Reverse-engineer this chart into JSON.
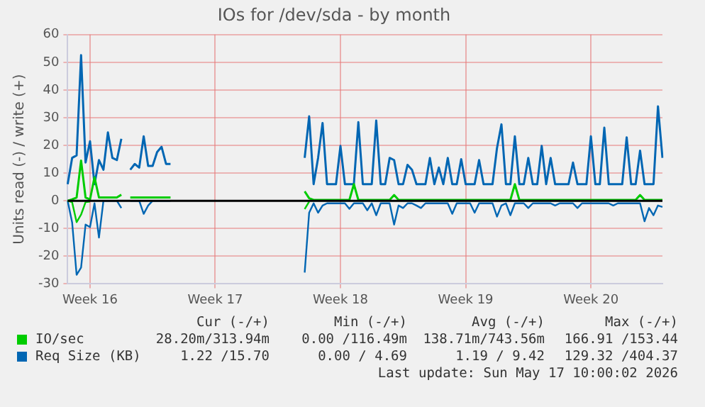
{
  "chart_data": {
    "type": "line",
    "title": "IOs for /dev/sda - by month",
    "ylabel": "Units read (-) / write (+)",
    "categories": [
      null,
      null,
      null,
      null,
      null,
      "Week 16",
      null,
      null,
      null,
      null,
      null,
      null,
      null,
      null,
      null,
      null,
      null,
      null,
      null,
      null,
      null,
      null,
      null,
      null,
      null,
      null,
      null,
      null,
      null,
      null,
      null,
      null,
      null,
      "Week 17",
      null,
      null,
      null,
      null,
      null,
      null,
      null,
      null,
      null,
      null,
      null,
      null,
      null,
      null,
      null,
      null,
      null,
      null,
      null,
      null,
      null,
      null,
      null,
      null,
      null,
      null,
      null,
      "Week 18",
      null,
      null,
      null,
      null,
      null,
      null,
      null,
      null,
      null,
      null,
      null,
      null,
      null,
      null,
      null,
      null,
      null,
      null,
      null,
      null,
      null,
      null,
      null,
      null,
      null,
      null,
      null,
      "Week 19",
      null,
      null,
      null,
      null,
      null,
      null,
      null,
      null,
      null,
      null,
      null,
      null,
      null,
      null,
      null,
      null,
      null,
      null,
      null,
      null,
      null,
      null,
      null,
      null,
      null,
      null,
      null,
      "Week 20",
      null,
      null,
      null,
      null,
      null,
      null,
      null,
      null,
      null,
      null,
      null,
      null,
      null,
      null,
      null,
      null
    ],
    "ylim": [
      -30,
      60
    ],
    "yticks": [
      -30,
      -20,
      -10,
      0,
      10,
      20,
      30,
      40,
      50,
      60
    ],
    "grid": true,
    "legend": "bottom",
    "marker": "none",
    "line_style": "solid",
    "ref_lines": [
      {
        "axis": "y",
        "value": 0,
        "color": "#000000"
      }
    ],
    "series": [
      {
        "name": "IO/sec",
        "color": "#00cc00",
        "values": [
          0,
          0.5,
          1.2,
          14.5,
          1.2,
          0.5,
          8.5,
          1.2,
          1.2,
          1.2,
          1.2,
          1.2,
          2.2,
          null,
          1.2,
          1.2,
          1.2,
          1.2,
          1.2,
          1.2,
          1.2,
          1.2,
          1.2,
          1.2,
          null,
          null,
          null,
          null,
          null,
          null,
          null,
          null,
          null,
          null,
          null,
          null,
          null,
          null,
          null,
          null,
          null,
          null,
          null,
          null,
          null,
          null,
          null,
          null,
          null,
          null,
          null,
          null,
          null,
          3.4,
          0.9,
          0.3,
          0.3,
          0.3,
          0.3,
          0.3,
          0.3,
          0.3,
          0.3,
          0.3,
          6,
          0.3,
          0.3,
          0.3,
          0.3,
          0.3,
          0.3,
          0.3,
          0.3,
          2.1,
          0.3,
          0.3,
          0.3,
          0.3,
          0.3,
          0.3,
          0.3,
          0.3,
          0.3,
          0.3,
          0.3,
          0.3,
          0.3,
          0.3,
          0.3,
          0.3,
          0.3,
          0.3,
          0.3,
          0.3,
          0.3,
          0.3,
          0.3,
          0.3,
          0.3,
          0.3,
          6,
          0.3,
          0.3,
          0.3,
          0.3,
          0.3,
          0.3,
          0.3,
          0.3,
          0.3,
          0.3,
          0.3,
          0.3,
          0.3,
          0.3,
          0.3,
          0.3,
          0.3,
          0.3,
          0.3,
          0.3,
          0.3,
          0.3,
          0.3,
          0.3,
          0.3,
          0.3,
          0.3,
          2.1,
          0.3,
          0.3,
          0.3,
          0.3,
          0.3
        ]
      },
      {
        "color": "#00cc00",
        "values": [
          0,
          -0.5,
          -7.7,
          -5,
          -0.5,
          -0.3,
          null,
          null,
          null,
          null,
          null,
          null,
          null,
          null,
          null,
          null,
          null,
          null,
          null,
          null,
          null,
          null,
          null,
          null,
          null,
          null,
          null,
          null,
          null,
          null,
          null,
          null,
          null,
          null,
          null,
          null,
          null,
          null,
          null,
          null,
          null,
          null,
          null,
          null,
          null,
          null,
          null,
          null,
          null,
          null,
          null,
          null,
          null,
          -3,
          -0.3,
          null,
          null,
          null,
          null,
          null,
          null,
          null,
          null,
          null,
          null,
          null,
          null,
          null,
          null,
          null,
          null,
          null,
          null,
          null,
          null,
          null,
          null,
          null,
          null,
          null,
          null,
          null,
          null,
          null,
          null,
          null,
          null,
          null,
          null,
          null,
          null,
          null,
          null,
          null,
          null,
          null,
          null,
          null,
          null,
          null,
          null,
          null,
          null,
          null,
          null,
          null,
          null,
          null,
          null,
          null,
          null,
          null,
          null,
          null,
          null,
          null,
          null,
          null,
          null,
          null,
          null,
          null,
          null,
          null,
          null,
          null,
          null,
          null,
          null,
          null,
          null,
          null,
          null,
          null
        ]
      },
      {
        "name": "Req Size (KB)",
        "color": "#0066b3",
        "values": [
          6,
          15.5,
          16.4,
          52.6,
          13.8,
          21.5,
          6,
          14.7,
          11.2,
          24.7,
          15.5,
          14.7,
          22.4,
          null,
          11.2,
          13.3,
          12,
          23.3,
          12.6,
          12.6,
          17.6,
          19.5,
          13.3,
          13.3,
          null,
          null,
          null,
          null,
          null,
          null,
          null,
          null,
          null,
          null,
          null,
          null,
          null,
          null,
          null,
          null,
          null,
          null,
          null,
          null,
          null,
          null,
          null,
          null,
          null,
          null,
          null,
          null,
          null,
          15.5,
          30.5,
          6,
          15.5,
          28.1,
          6,
          6,
          6,
          19.8,
          6,
          6,
          6,
          28.4,
          6,
          6,
          6,
          29,
          6,
          6,
          15.5,
          14.7,
          6,
          6,
          13,
          11.2,
          6,
          6,
          6,
          15.5,
          6,
          12,
          6,
          15.5,
          6,
          6,
          15,
          6,
          6,
          6,
          14.7,
          6,
          6,
          6,
          19,
          27.6,
          6,
          6,
          23.3,
          6,
          6,
          15.5,
          6,
          6,
          19.8,
          6,
          15.5,
          6,
          6,
          6,
          6,
          13.8,
          6,
          6,
          6,
          23.3,
          6,
          6,
          26.4,
          6,
          6,
          6,
          6,
          22.9,
          6,
          6,
          18.1,
          6,
          6,
          6,
          34.1,
          15.5
        ]
      },
      {
        "color": "#0066b3",
        "values": [
          0,
          -7.8,
          -26.7,
          -24.1,
          -8.6,
          -9.5,
          -0.9,
          -13.3,
          0,
          0,
          0,
          0,
          -2.6,
          null,
          0,
          0,
          0,
          -4.7,
          -1.7,
          0,
          0,
          0,
          0,
          0,
          null,
          null,
          null,
          null,
          null,
          null,
          null,
          null,
          null,
          null,
          null,
          null,
          null,
          null,
          null,
          null,
          null,
          null,
          null,
          null,
          null,
          null,
          null,
          null,
          null,
          null,
          null,
          null,
          null,
          -25.9,
          -4.3,
          -0.9,
          -4.3,
          -1.7,
          -0.9,
          -0.9,
          -0.9,
          -0.9,
          -0.9,
          -2.9,
          -0.9,
          -0.9,
          -0.9,
          -3.4,
          -0.9,
          -5.2,
          -0.9,
          -0.9,
          -0.9,
          -8.6,
          -1.7,
          -2.6,
          -0.9,
          -0.9,
          -1.7,
          -2.6,
          -0.9,
          -0.9,
          -0.9,
          -0.9,
          -0.9,
          -0.9,
          -4.7,
          -0.9,
          -0.9,
          -0.9,
          -0.9,
          -4.3,
          -0.9,
          -0.9,
          -0.9,
          -0.9,
          -5.7,
          -1.7,
          -0.9,
          -5.2,
          -0.9,
          -0.9,
          -0.9,
          -2.6,
          -0.9,
          -0.9,
          -0.9,
          -0.9,
          -0.9,
          -1.7,
          -0.9,
          -0.9,
          -0.9,
          -0.9,
          -2.6,
          -0.9,
          -0.9,
          -0.9,
          -0.9,
          -0.9,
          -0.9,
          -0.9,
          -1.7,
          -0.9,
          -0.9,
          -0.9,
          -0.9,
          -0.9,
          -0.9,
          -7.4,
          -2.6,
          -5.2,
          -1.7,
          -2.2
        ]
      }
    ],
    "annotations": [
      "Cur (-/+)",
      "Min (-/+)",
      "Avg (-/+)",
      "Max (-/+)",
      "28.20m/313.94m",
      "0.00 /116.49m",
      "138.71m/743.56m",
      "166.91 /153.44",
      "1.22 /15.70",
      "0.00 / 4.69",
      "1.19 / 9.42",
      "129.32 /404.37",
      "Last update: Sun May 17 10:00:02 2026"
    ]
  }
}
